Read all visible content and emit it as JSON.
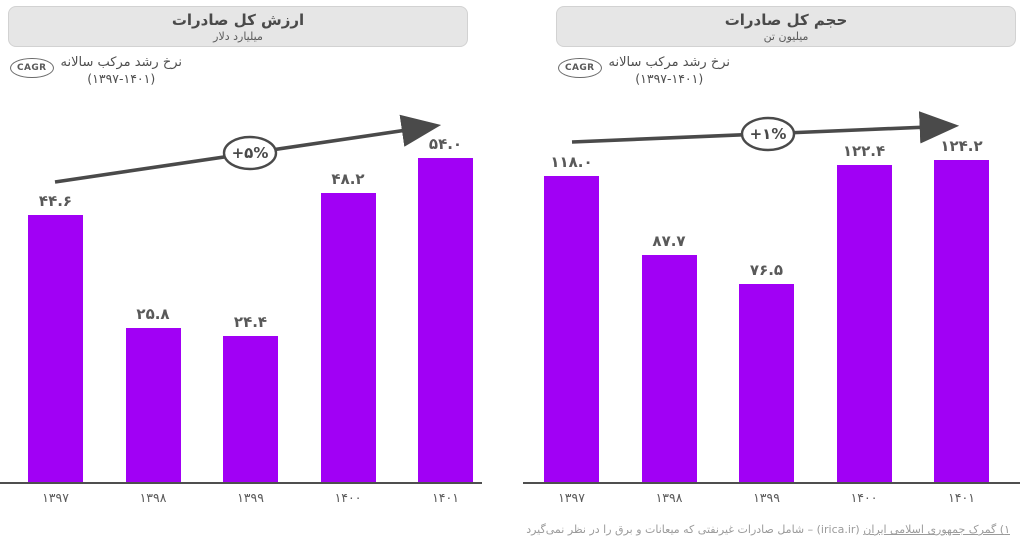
{
  "footnote": {
    "source_underlined": "۱) گمرک جمهوری اسلامی ایران",
    "source_domain": "(irica.ir)",
    "text": "– شامل صادرات غیرنفتی که میعانات و برق را در نظر نمی‌گیرد"
  },
  "chart_data": [
    {
      "type": "bar",
      "title": "ارزش کل صادرات",
      "subtitle": "میلیارد دلار",
      "categories": [
        "۱۳۹۷",
        "۱۳۹۸",
        "۱۳۹۹",
        "۱۴۰۰",
        "۱۴۰۱"
      ],
      "categories_numeric": [
        1397,
        1398,
        1399,
        1400,
        1401
      ],
      "values": [
        44.6,
        25.8,
        24.4,
        48.2,
        54.0
      ],
      "value_labels": [
        "۴۴.۶",
        "۲۵.۸",
        "۲۴.۴",
        "۴۸.۲",
        "۵۴.۰"
      ],
      "ylim": [
        0,
        60
      ],
      "grid": false,
      "legend": "none",
      "bar_color": "#A100F5",
      "cagr": {
        "badge": "CAGR",
        "label": "نرخ رشد مرکب سالانه",
        "period": "(۱۳۹۷-۱۴۰۱)",
        "trend_label": "+۵%",
        "trend_value_pct": 5
      }
    },
    {
      "type": "bar",
      "title": "حجم کل صادرات",
      "subtitle": "میلیون تن",
      "categories": [
        "۱۳۹۷",
        "۱۳۹۸",
        "۱۳۹۹",
        "۱۴۰۰",
        "۱۴۰۱"
      ],
      "categories_numeric": [
        1397,
        1398,
        1399,
        1400,
        1401
      ],
      "values": [
        118.0,
        87.7,
        76.5,
        122.4,
        124.2
      ],
      "value_labels": [
        "۱۱۸.۰",
        "۸۷.۷",
        "۷۶.۵",
        "۱۲۲.۴",
        "۱۲۴.۲"
      ],
      "ylim": [
        0,
        140
      ],
      "grid": false,
      "legend": "none",
      "bar_color": "#A100F5",
      "cagr": {
        "badge": "CAGR",
        "label": "نرخ رشد مرکب سالانه",
        "period": "(۱۳۹۷-۱۴۰۱)",
        "trend_label": "+۱%",
        "trend_value_pct": 1
      }
    }
  ],
  "colors": {
    "bar": "#A100F5",
    "arrow": "#4a4a4a",
    "header_band": "#e6e6e6",
    "label_text": "#595959",
    "footnote_text": "#9b9b9b"
  }
}
